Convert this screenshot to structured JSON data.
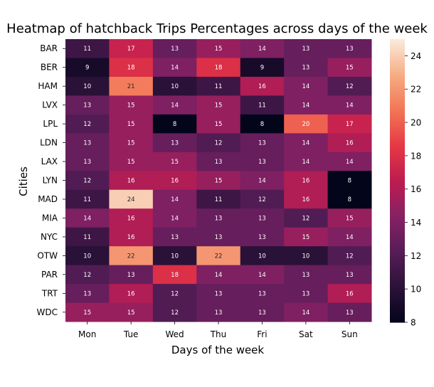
{
  "chart_data": {
    "type": "heatmap",
    "title": "Heatmap of hatchback Trips Percentages across days of the week",
    "xlabel": "Days of the week",
    "ylabel": "Cities",
    "x": [
      "Mon",
      "Tue",
      "Wed",
      "Thu",
      "Fri",
      "Sat",
      "Sun"
    ],
    "y": [
      "BAR",
      "BER",
      "HAM",
      "LVX",
      "LPL",
      "LDN",
      "LAX",
      "LYN",
      "MAD",
      "MIA",
      "NYC",
      "OTW",
      "PAR",
      "TRT",
      "WDC"
    ],
    "values": [
      [
        11,
        17,
        13,
        15,
        14,
        13,
        13
      ],
      [
        9,
        18,
        14,
        18,
        9,
        13,
        15
      ],
      [
        10,
        21,
        10,
        11,
        16,
        14,
        12
      ],
      [
        13,
        15,
        14,
        15,
        11,
        14,
        14
      ],
      [
        12,
        15,
        8,
        15,
        8,
        20,
        17
      ],
      [
        13,
        15,
        13,
        12,
        13,
        14,
        16
      ],
      [
        13,
        15,
        15,
        13,
        13,
        14,
        14
      ],
      [
        12,
        16,
        16,
        15,
        14,
        16,
        8
      ],
      [
        11,
        24,
        14,
        11,
        12,
        16,
        8
      ],
      [
        14,
        16,
        14,
        13,
        13,
        12,
        15
      ],
      [
        11,
        16,
        13,
        13,
        13,
        15,
        14
      ],
      [
        10,
        22,
        10,
        22,
        10,
        10,
        12
      ],
      [
        12,
        13,
        18,
        14,
        14,
        13,
        13
      ],
      [
        13,
        16,
        12,
        13,
        13,
        13,
        16
      ],
      [
        15,
        15,
        12,
        13,
        13,
        14,
        13
      ]
    ],
    "colormap": "rocket",
    "vmin": 8,
    "vmax": 25,
    "colorbar_ticks": [
      8,
      10,
      12,
      14,
      16,
      18,
      20,
      22,
      24
    ]
  }
}
